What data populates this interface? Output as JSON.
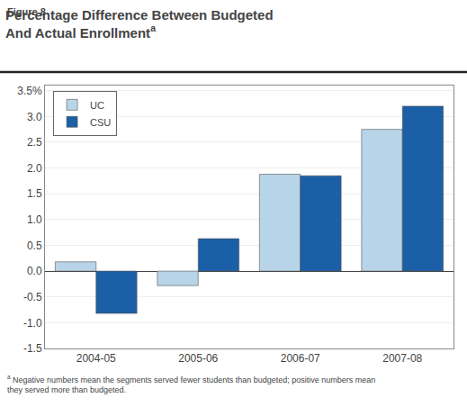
{
  "chart_data": {
    "type": "bar",
    "title": "Percentage Difference Between Budgeted\nAnd Actual Enrollment",
    "annotations": [
      "Figure 8",
      "a",
      "a",
      "Negative numbers mean the segments served fewer students than budgeted; positive numbers mean\nthey served more than budgeted."
    ],
    "categories": [
      "2004-05",
      "2005-06",
      "2006-07",
      "2007-08"
    ],
    "series": [
      {
        "name": "UC",
        "color": "#b8d4e8",
        "values": [
          0.18,
          -0.28,
          1.88,
          2.75
        ]
      },
      {
        "name": "CSU",
        "color": "#1b5fa6",
        "values": [
          -0.82,
          0.63,
          1.85,
          3.2
        ]
      }
    ],
    "ylim": [
      -1.5,
      3.6
    ],
    "yticks": [
      -1.5,
      {
        "value": -1.0,
        "label": "-1.0"
      },
      -0.5,
      {
        "value": 0.0,
        "label": "0.0"
      },
      0.5,
      {
        "value": 1.0,
        "label": "1.0"
      },
      1.5,
      {
        "value": 2.0,
        "label": "2.0"
      },
      2.5,
      {
        "value": 3.0,
        "label": "3.0"
      },
      {
        "value": 3.5,
        "label": "3.5%"
      }
    ],
    "grid": true,
    "legend": "upper left"
  }
}
